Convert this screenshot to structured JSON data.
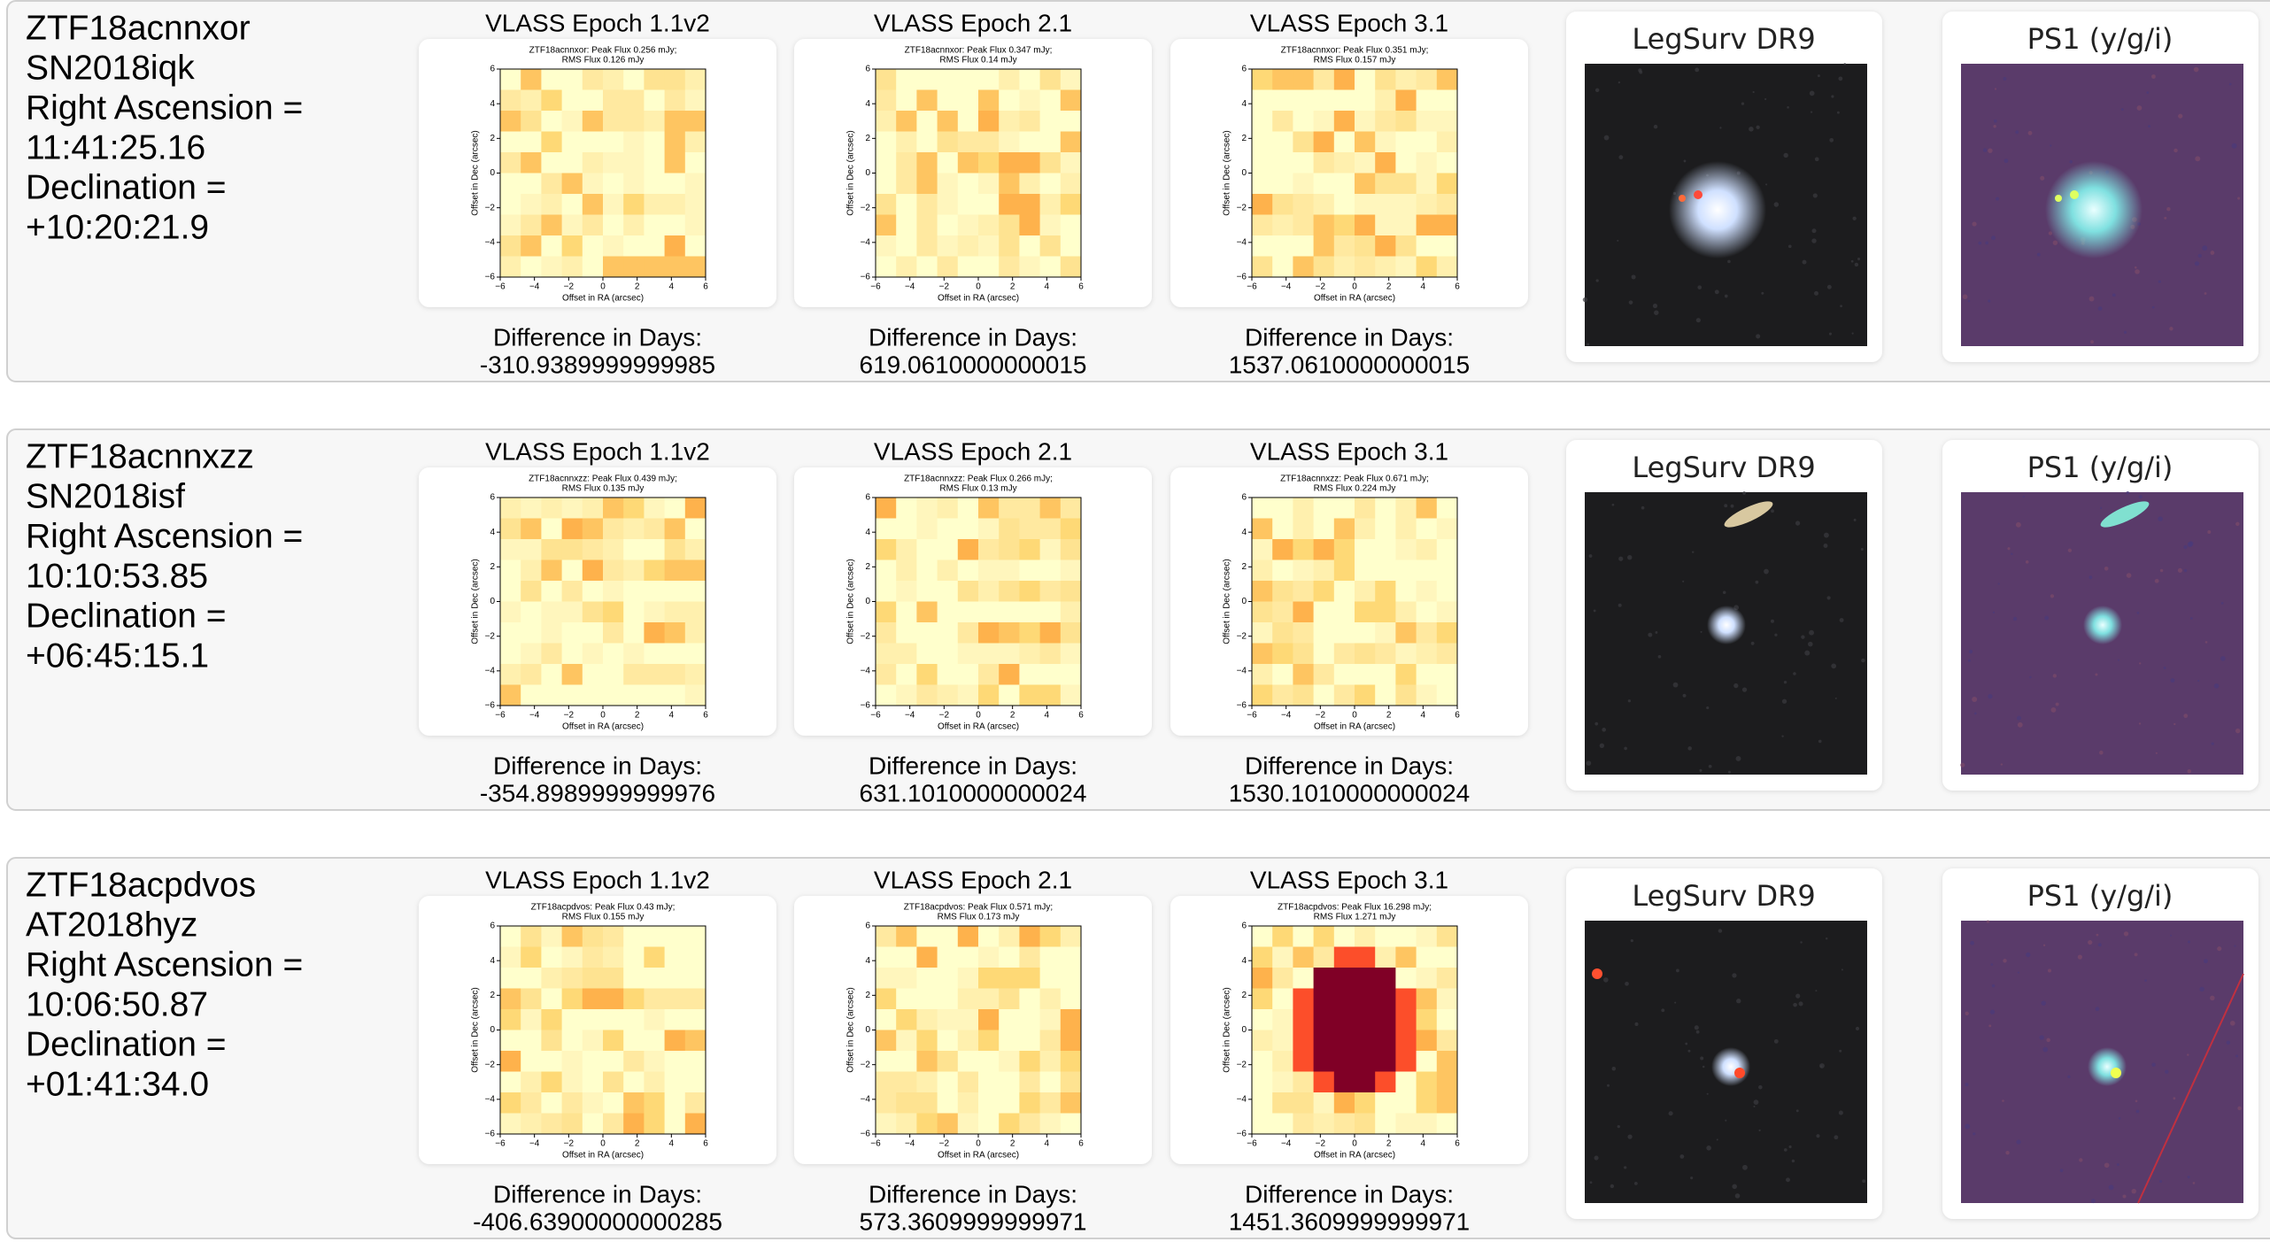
{
  "rows": [
    {
      "name": "ZTF18acnnxor",
      "alias": "SN2018iqk",
      "ra_label": "Right Ascension =",
      "ra": "11:41:25.16",
      "dec_label": "Declination =",
      "dec": "+10:20:21.9",
      "epochs": [
        {
          "title": "VLASS Epoch 1.1v2",
          "plot_title": [
            "ZTF18acnnxor: Peak Flux 0.256 mJy;",
            "RMS Flux 0.126 mJy"
          ],
          "diff_label": "Difference in Days:",
          "diff": "-310.9389999999985"
        },
        {
          "title": "VLASS Epoch 2.1",
          "plot_title": [
            "ZTF18acnnxor: Peak Flux 0.347 mJy;",
            "RMS Flux 0.14 mJy"
          ],
          "diff_label": "Difference in Days:",
          "diff": "619.0610000000015"
        },
        {
          "title": "VLASS Epoch 3.1",
          "plot_title": [
            "ZTF18acnnxor: Peak Flux 0.351 mJy;",
            "RMS Flux 0.157 mJy"
          ],
          "diff_label": "Difference in Days:",
          "diff": "1537.0610000000015"
        }
      ],
      "images": [
        {
          "title": "LegSurv DR9"
        },
        {
          "title": "PS1 (y/g/i)"
        }
      ]
    },
    {
      "name": "ZTF18acnnxzz",
      "alias": "SN2018isf",
      "ra_label": "Right Ascension =",
      "ra": "10:10:53.85",
      "dec_label": "Declination =",
      "dec": "+06:45:15.1",
      "epochs": [
        {
          "title": "VLASS Epoch 1.1v2",
          "plot_title": [
            "ZTF18acnnxzz: Peak Flux 0.439 mJy;",
            "RMS Flux 0.135 mJy"
          ],
          "diff_label": "Difference in Days:",
          "diff": "-354.8989999999976"
        },
        {
          "title": "VLASS Epoch 2.1",
          "plot_title": [
            "ZTF18acnnxzz: Peak Flux 0.266 mJy;",
            "RMS Flux 0.13 mJy"
          ],
          "diff_label": "Difference in Days:",
          "diff": "631.1010000000024"
        },
        {
          "title": "VLASS Epoch 3.1",
          "plot_title": [
            "ZTF18acnnxzz: Peak Flux 0.671 mJy;",
            "RMS Flux 0.224 mJy"
          ],
          "diff_label": "Difference in Days:",
          "diff": "1530.1010000000024"
        }
      ],
      "images": [
        {
          "title": "LegSurv DR9"
        },
        {
          "title": "PS1 (y/g/i)"
        }
      ]
    },
    {
      "name": "ZTF18acpdvos",
      "alias": "AT2018hyz",
      "ra_label": "Right Ascension =",
      "ra": "10:06:50.87",
      "dec_label": "Declination =",
      "dec": "+01:41:34.0",
      "epochs": [
        {
          "title": "VLASS Epoch 1.1v2",
          "plot_title": [
            "ZTF18acpdvos: Peak Flux 0.43 mJy;",
            "RMS Flux 0.155 mJy"
          ],
          "diff_label": "Difference in Days:",
          "diff": "-406.63900000000285"
        },
        {
          "title": "VLASS Epoch 2.1",
          "plot_title": [
            "ZTF18acpdvos: Peak Flux 0.571 mJy;",
            "RMS Flux 0.173 mJy"
          ],
          "diff_label": "Difference in Days:",
          "diff": "573.3609999999971"
        },
        {
          "title": "VLASS Epoch 3.1",
          "plot_title": [
            "ZTF18acpdvos: Peak Flux 16.298 mJy;",
            "RMS Flux 1.271 mJy"
          ],
          "diff_label": "Difference in Days:",
          "diff": "1451.3609999999971"
        }
      ],
      "images": [
        {
          "title": "LegSurv DR9"
        },
        {
          "title": "PS1 (y/g/i)"
        }
      ]
    }
  ],
  "axes": {
    "x_label": "Offset in RA (arcsec)",
    "y_label": "Offset in Dec (arcsec)",
    "ticks": [
      "−6",
      "−4",
      "−2",
      "0",
      "2",
      "4",
      "6"
    ]
  }
}
